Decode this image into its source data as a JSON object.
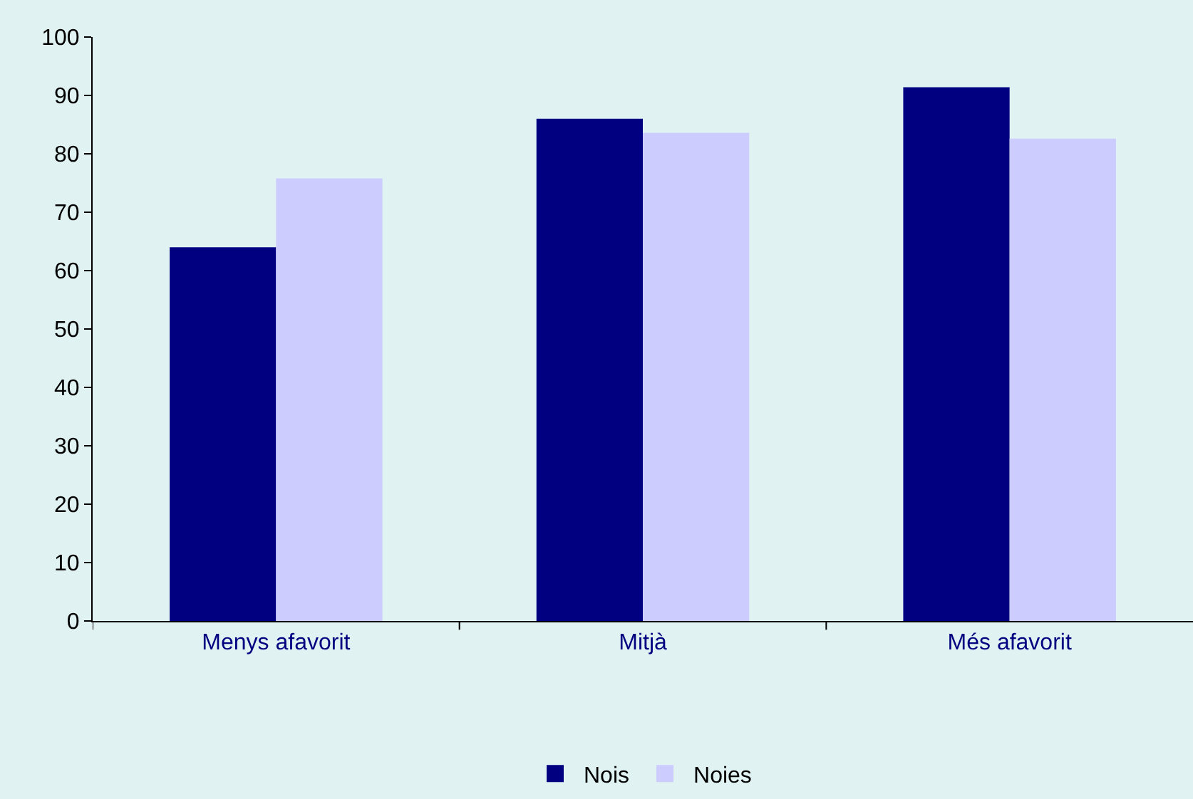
{
  "chart_data": {
    "type": "bar",
    "categories": [
      "Menys afavorit",
      "Mitjà",
      "Més afavorit"
    ],
    "series": [
      {
        "name": "Nois",
        "color": "#000080",
        "values": [
          64,
          86,
          91.4
        ]
      },
      {
        "name": "Noies",
        "color": "#ccccff",
        "values": [
          75.8,
          83.6,
          82.6
        ]
      }
    ],
    "ylim": [
      0,
      100
    ],
    "yticks": [
      0,
      10,
      20,
      30,
      40,
      50,
      60,
      70,
      80,
      90,
      100
    ],
    "grid": false,
    "legend": "bottom"
  }
}
